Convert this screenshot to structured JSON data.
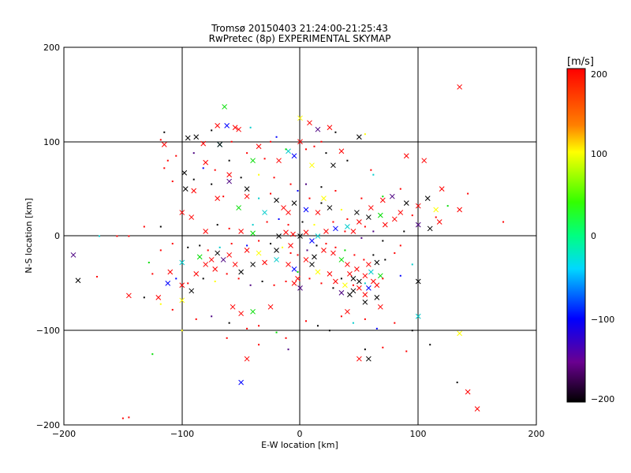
{
  "chart_data": {
    "type": "scatter",
    "title": "Tromsø 20150403 21:24:00-21:25:43",
    "subtitle": "RwPretec (8p) EXPERIMENTAL SKYMAP",
    "xlabel": "E-W location [km]",
    "ylabel": "N-S location [km]",
    "xlim": [
      -200,
      200
    ],
    "ylim": [
      -200,
      200
    ],
    "xticks": [
      "−200",
      "−100",
      "0",
      "100",
      "200"
    ],
    "yticks": [
      "−200",
      "−100",
      "0",
      "100",
      "200"
    ],
    "grid": true,
    "colorbar": {
      "unit": "[m/s]",
      "range": [
        -200,
        200
      ],
      "ticks": [
        "200",
        "100",
        "0",
        "−100",
        "−200"
      ]
    },
    "series": [
      {
        "marker": "x",
        "points": [
          [
            135,
            158
          ],
          [
            -64,
            137
          ],
          [
            -55,
            115
          ],
          [
            -52,
            113
          ],
          [
            -88,
            105
          ],
          [
            -95,
            104
          ],
          [
            -82,
            98
          ],
          [
            -68,
            97
          ],
          [
            -70,
            117
          ],
          [
            -62,
            117
          ],
          [
            -115,
            97
          ],
          [
            -68,
            97
          ],
          [
            0,
            125
          ],
          [
            8,
            120
          ],
          [
            25,
            115
          ],
          [
            15,
            113
          ],
          [
            50,
            105
          ],
          [
            0,
            100
          ],
          [
            -35,
            95
          ],
          [
            -40,
            80
          ],
          [
            -60,
            65
          ],
          [
            -80,
            78
          ],
          [
            -98,
            67
          ],
          [
            -97,
            50
          ],
          [
            -90,
            48
          ],
          [
            -10,
            90
          ],
          [
            35,
            90
          ],
          [
            -5,
            85
          ],
          [
            -18,
            80
          ],
          [
            28,
            75
          ],
          [
            10,
            75
          ],
          [
            90,
            85
          ],
          [
            105,
            80
          ],
          [
            -60,
            58
          ],
          [
            -45,
            50
          ],
          [
            -70,
            40
          ],
          [
            -45,
            42
          ],
          [
            -52,
            30
          ],
          [
            -100,
            25
          ],
          [
            -92,
            20
          ],
          [
            -20,
            38
          ],
          [
            -5,
            35
          ],
          [
            -14,
            30
          ],
          [
            -30,
            25
          ],
          [
            -10,
            25
          ],
          [
            5,
            28
          ],
          [
            15,
            25
          ],
          [
            25,
            30
          ],
          [
            20,
            40
          ],
          [
            60,
            30
          ],
          [
            70,
            38
          ],
          [
            78,
            42
          ],
          [
            90,
            35
          ],
          [
            100,
            32
          ],
          [
            85,
            25
          ],
          [
            68,
            22
          ],
          [
            80,
            18
          ],
          [
            72,
            12
          ],
          [
            58,
            20
          ],
          [
            48,
            25
          ],
          [
            50,
            15
          ],
          [
            40,
            10
          ],
          [
            45,
            5
          ],
          [
            30,
            8
          ],
          [
            120,
            50
          ],
          [
            108,
            40
          ],
          [
            115,
            28
          ],
          [
            135,
            28
          ],
          [
            118,
            15
          ],
          [
            100,
            12
          ],
          [
            110,
            8
          ],
          [
            -80,
            5
          ],
          [
            -50,
            5
          ],
          [
            -40,
            3
          ],
          [
            -12,
            4
          ],
          [
            -6,
            2
          ],
          [
            -18,
            0
          ],
          [
            0,
            0
          ],
          [
            5,
            4
          ],
          [
            15,
            0
          ],
          [
            22,
            5
          ],
          [
            10,
            -5
          ],
          [
            -8,
            -10
          ],
          [
            -20,
            -15
          ],
          [
            -35,
            -18
          ],
          [
            -45,
            -15
          ],
          [
            -60,
            -20
          ],
          [
            -65,
            -25
          ],
          [
            -70,
            -18
          ],
          [
            -75,
            -25
          ],
          [
            -80,
            -30
          ],
          [
            -85,
            -22
          ],
          [
            -72,
            -35
          ],
          [
            -55,
            -30
          ],
          [
            -50,
            -38
          ],
          [
            -40,
            -30
          ],
          [
            -30,
            -28
          ],
          [
            -20,
            -25
          ],
          [
            -10,
            -30
          ],
          [
            -5,
            -35
          ],
          [
            5,
            -25
          ],
          [
            10,
            -30
          ],
          [
            15,
            -38
          ],
          [
            -2,
            -45
          ],
          [
            -5,
            -50
          ],
          [
            0,
            -55
          ],
          [
            12,
            -22
          ],
          [
            20,
            -15
          ],
          [
            28,
            -18
          ],
          [
            35,
            -25
          ],
          [
            40,
            -30
          ],
          [
            42,
            -40
          ],
          [
            45,
            -45
          ],
          [
            50,
            -48
          ],
          [
            55,
            -42
          ],
          [
            60,
            -38
          ],
          [
            62,
            -48
          ],
          [
            58,
            -55
          ],
          [
            50,
            -55
          ],
          [
            45,
            -58
          ],
          [
            38,
            -52
          ],
          [
            30,
            -48
          ],
          [
            25,
            -40
          ],
          [
            35,
            -60
          ],
          [
            42,
            -62
          ],
          [
            55,
            -62
          ],
          [
            65,
            -52
          ],
          [
            68,
            -42
          ],
          [
            48,
            -35
          ],
          [
            58,
            -30
          ],
          [
            65,
            -28
          ],
          [
            100,
            -48
          ],
          [
            -88,
            -40
          ],
          [
            -100,
            -28
          ],
          [
            -110,
            -38
          ],
          [
            -112,
            -50
          ],
          [
            -100,
            -52
          ],
          [
            -92,
            -58
          ],
          [
            -100,
            -68
          ],
          [
            -120,
            -65
          ],
          [
            -145,
            -63
          ],
          [
            -192,
            -20
          ],
          [
            -188,
            -47
          ],
          [
            -57,
            -75
          ],
          [
            -50,
            -82
          ],
          [
            -40,
            -80
          ],
          [
            -25,
            -75
          ],
          [
            40,
            -80
          ],
          [
            55,
            -70
          ],
          [
            65,
            -65
          ],
          [
            68,
            -75
          ],
          [
            100,
            -85
          ],
          [
            -45,
            -130
          ],
          [
            -50,
            -155
          ],
          [
            50,
            -130
          ],
          [
            58,
            -130
          ],
          [
            135,
            -103
          ],
          [
            142,
            -165
          ],
          [
            150,
            -183
          ]
        ]
      },
      {
        "marker": "dot",
        "points": [
          [
            -118,
            102
          ],
          [
            -115,
            110
          ],
          [
            -75,
            112
          ],
          [
            -58,
            100
          ],
          [
            -42,
            115
          ],
          [
            -25,
            100
          ],
          [
            -20,
            105
          ],
          [
            18,
            100
          ],
          [
            30,
            110
          ],
          [
            55,
            108
          ],
          [
            -112,
            80
          ],
          [
            -105,
            85
          ],
          [
            -90,
            88
          ],
          [
            -60,
            80
          ],
          [
            -45,
            88
          ],
          [
            -30,
            82
          ],
          [
            -12,
            92
          ],
          [
            5,
            92
          ],
          [
            12,
            95
          ],
          [
            22,
            88
          ],
          [
            40,
            80
          ],
          [
            60,
            70
          ],
          [
            62,
            65
          ],
          [
            -115,
            72
          ],
          [
            -82,
            72
          ],
          [
            -72,
            70
          ],
          [
            -50,
            62
          ],
          [
            -35,
            65
          ],
          [
            -22,
            62
          ],
          [
            -8,
            55
          ],
          [
            5,
            55
          ],
          [
            18,
            52
          ],
          [
            30,
            48
          ],
          [
            52,
            40
          ],
          [
            70,
            42
          ],
          [
            85,
            50
          ],
          [
            -108,
            58
          ],
          [
            -90,
            60
          ],
          [
            -75,
            55
          ],
          [
            -65,
            42
          ],
          [
            -35,
            40
          ],
          [
            -25,
            45
          ],
          [
            -2,
            48
          ],
          [
            8,
            40
          ],
          [
            18,
            35
          ],
          [
            35,
            28
          ],
          [
            40,
            18
          ],
          [
            55,
            10
          ],
          [
            62,
            5
          ],
          [
            88,
            5
          ],
          [
            95,
            22
          ],
          [
            115,
            20
          ],
          [
            125,
            32
          ],
          [
            142,
            45
          ],
          [
            -132,
            10
          ],
          [
            -118,
            10
          ],
          [
            -70,
            12
          ],
          [
            -60,
            8
          ],
          [
            -40,
            12
          ],
          [
            -28,
            15
          ],
          [
            -18,
            18
          ],
          [
            -10,
            12
          ],
          [
            2,
            15
          ],
          [
            12,
            12
          ],
          [
            28,
            15
          ],
          [
            38,
            5
          ],
          [
            52,
            -2
          ],
          [
            70,
            -5
          ],
          [
            85,
            -10
          ],
          [
            -145,
            0
          ],
          [
            -128,
            -28
          ],
          [
            -118,
            -15
          ],
          [
            -108,
            -8
          ],
          [
            -95,
            -12
          ],
          [
            -85,
            -10
          ],
          [
            -78,
            -15
          ],
          [
            -68,
            -12
          ],
          [
            -58,
            -8
          ],
          [
            -45,
            -10
          ],
          [
            -35,
            -5
          ],
          [
            -25,
            -8
          ],
          [
            -15,
            -12
          ],
          [
            -8,
            -18
          ],
          [
            -2,
            -20
          ],
          [
            6,
            -15
          ],
          [
            14,
            -10
          ],
          [
            22,
            -8
          ],
          [
            30,
            -12
          ],
          [
            38,
            -15
          ],
          [
            46,
            -20
          ],
          [
            54,
            -25
          ],
          [
            62,
            -20
          ],
          [
            72,
            -25
          ],
          [
            80,
            -18
          ],
          [
            95,
            -30
          ],
          [
            -125,
            -40
          ],
          [
            -105,
            -45
          ],
          [
            -95,
            -50
          ],
          [
            -82,
            -45
          ],
          [
            -72,
            -48
          ],
          [
            -62,
            -40
          ],
          [
            -52,
            -45
          ],
          [
            -42,
            -52
          ],
          [
            -32,
            -48
          ],
          [
            -22,
            -52
          ],
          [
            -12,
            -48
          ],
          [
            -2,
            -38
          ],
          [
            8,
            -45
          ],
          [
            18,
            -50
          ],
          [
            28,
            -55
          ],
          [
            35,
            -45
          ],
          [
            45,
            -52
          ],
          [
            55,
            -50
          ],
          [
            70,
            -45
          ],
          [
            85,
            -42
          ],
          [
            -172,
            -43
          ],
          [
            -132,
            -65
          ],
          [
            -118,
            -72
          ],
          [
            -108,
            -78
          ],
          [
            -88,
            -88
          ],
          [
            -75,
            -85
          ],
          [
            -60,
            -92
          ],
          [
            -45,
            -98
          ],
          [
            -35,
            -95
          ],
          [
            -20,
            -102
          ],
          [
            -12,
            -108
          ],
          [
            5,
            -90
          ],
          [
            15,
            -95
          ],
          [
            25,
            -100
          ],
          [
            35,
            -85
          ],
          [
            45,
            -92
          ],
          [
            55,
            -88
          ],
          [
            65,
            -98
          ],
          [
            80,
            -92
          ],
          [
            95,
            -100
          ],
          [
            -100,
            -100
          ],
          [
            -62,
            -108
          ],
          [
            -35,
            -115
          ],
          [
            -10,
            -120
          ],
          [
            55,
            -120
          ],
          [
            70,
            -118
          ],
          [
            90,
            -122
          ],
          [
            -125,
            -125
          ],
          [
            -145,
            -192
          ],
          [
            -150,
            -193
          ],
          [
            110,
            -115
          ],
          [
            133,
            -155
          ],
          [
            -155,
            0
          ],
          [
            -170,
            0
          ],
          [
            172,
            15
          ]
        ]
      }
    ]
  }
}
